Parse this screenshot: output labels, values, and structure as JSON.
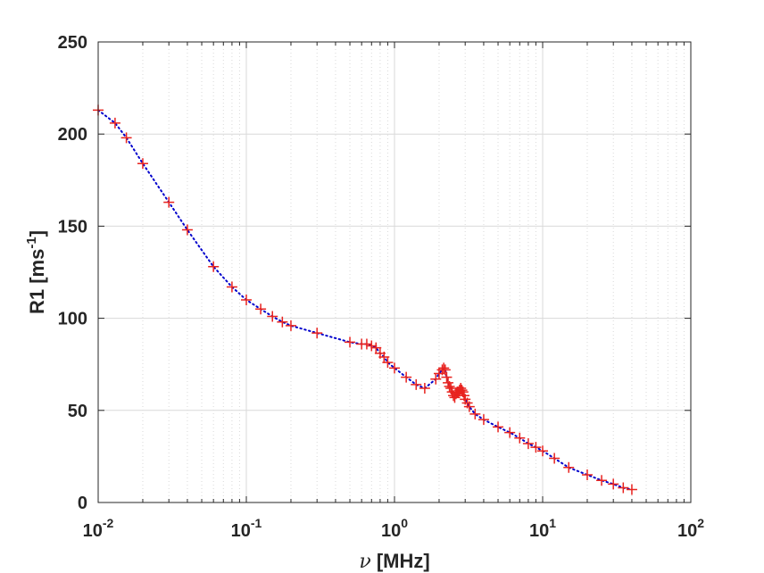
{
  "chart_data": {
    "type": "scatter",
    "title": "",
    "xlabel_symbol": "ν",
    "xlabel_unit": "[MHz]",
    "ylabel_main": "R1 [ms",
    "ylabel_sup": "-1",
    "ylabel_close": "]",
    "xscale": "log",
    "xlim": [
      0.01,
      100
    ],
    "ylim": [
      0,
      250
    ],
    "grid": true,
    "x_ticks": [
      {
        "base": "10",
        "exp": "-2",
        "value": 0.01
      },
      {
        "base": "10",
        "exp": "-1",
        "value": 0.1
      },
      {
        "base": "10",
        "exp": "0",
        "value": 1
      },
      {
        "base": "10",
        "exp": "1",
        "value": 10
      },
      {
        "base": "10",
        "exp": "2",
        "value": 100
      }
    ],
    "y_ticks": [
      "0",
      "50",
      "100",
      "150",
      "200",
      "250"
    ],
    "colors": {
      "fit": "#0000cc",
      "points": "#e8231f",
      "axis": "#262626",
      "grid": "#d9d9d9"
    },
    "series": [
      {
        "marker": "+",
        "x": [
          0.01,
          0.013,
          0.0155,
          0.02,
          0.03,
          0.04,
          0.06,
          0.08,
          0.1,
          0.125,
          0.15,
          0.175,
          0.2,
          0.3,
          0.5,
          0.6,
          0.65,
          0.7,
          0.75,
          0.8,
          0.85,
          0.9,
          1.0,
          1.2,
          1.4,
          1.6,
          1.9,
          2.0,
          2.1,
          2.15,
          2.2,
          2.25,
          2.3,
          2.35,
          2.4,
          2.45,
          2.5,
          2.55,
          2.6,
          2.65,
          2.7,
          2.75,
          2.8,
          2.85,
          2.9,
          2.95,
          3.0,
          3.1,
          3.2,
          3.5,
          4.0,
          5.0,
          6.0,
          7.0,
          8.0,
          9.0,
          10.0,
          12.0,
          15.0,
          20.0,
          25.0,
          30.0,
          35.0,
          40.0
        ],
        "y": [
          213,
          206,
          198,
          184,
          163,
          148,
          128,
          117,
          110,
          105,
          101,
          98,
          96,
          92,
          87,
          86,
          86,
          85,
          84,
          81,
          79,
          76,
          73,
          68,
          64,
          62,
          67,
          70,
          72,
          73,
          72,
          68,
          65,
          63,
          62,
          60,
          58,
          57,
          59,
          60,
          60,
          61,
          62,
          61,
          60,
          58,
          56,
          54,
          52,
          48,
          45,
          41,
          38,
          35,
          32,
          30,
          28,
          24,
          19,
          15,
          12,
          10,
          8,
          7
        ]
      }
    ]
  }
}
